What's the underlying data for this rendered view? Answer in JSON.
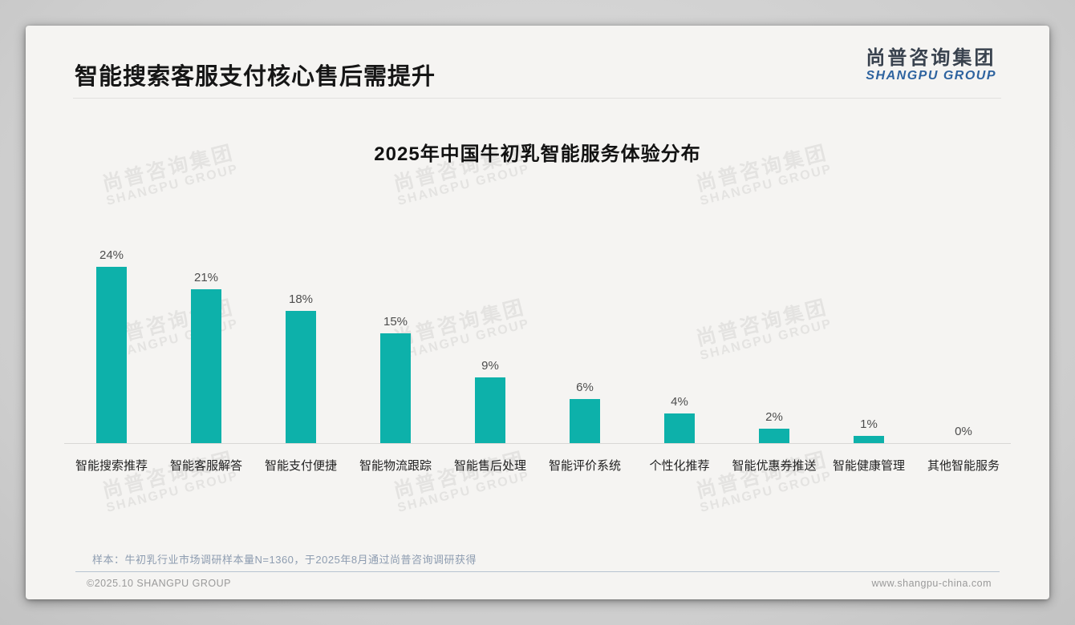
{
  "page": {
    "title": "智能搜索客服支付核心售后需提升",
    "logo": {
      "cn": "尚普咨询集团",
      "en": "SHANGPU GROUP"
    },
    "watermark": {
      "line1": "尚普咨询集团",
      "line2": "SHANGPU GROUP"
    },
    "footnote": "样本：牛初乳行业市场调研样本量N=1360，于2025年8月通过尚普咨询调研获得",
    "footer": {
      "left": "©2025.10 SHANGPU GROUP",
      "right": "www.shangpu-china.com"
    },
    "colors": {
      "bar": "#0db1aa",
      "logo_blue": "#2e639f",
      "footnote_gray_blue": "#8d9cb0"
    }
  },
  "chart_data": {
    "type": "bar",
    "title": "2025年中国牛初乳智能服务体验分布",
    "categories": [
      "智能搜索推荐",
      "智能客服解答",
      "智能支付便捷",
      "智能物流跟踪",
      "智能售后处理",
      "智能评价系统",
      "个性化推荐",
      "智能优惠券推送",
      "智能健康管理",
      "其他智能服务"
    ],
    "values": [
      24,
      21,
      18,
      15,
      9,
      6,
      4,
      2,
      1,
      0
    ],
    "value_labels": [
      "24%",
      "21%",
      "18%",
      "15%",
      "9%",
      "6%",
      "4%",
      "2%",
      "1%",
      "0%"
    ],
    "unit": "%",
    "xlabel": "",
    "ylabel": "",
    "ylim": [
      0,
      26
    ],
    "grid": false,
    "legend": false,
    "bar_color": "#0db1aa"
  }
}
